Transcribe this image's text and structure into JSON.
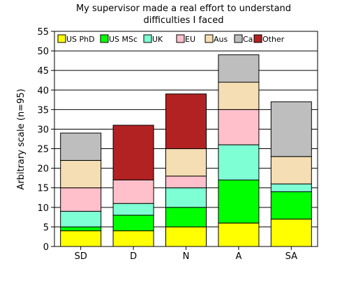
{
  "chart_data": {
    "type": "bar",
    "stacked": true,
    "title": [
      "My supervisor made a real effort to understand",
      "difficulties I faced"
    ],
    "ylabel": "Arbitrary scale (n=95)",
    "xlabel": "",
    "ylim": [
      0,
      55
    ],
    "yticks": [
      0,
      5,
      10,
      15,
      20,
      25,
      30,
      35,
      40,
      45,
      50,
      55
    ],
    "grid": true,
    "legend_position": "top",
    "categories": [
      "SD",
      "D",
      "N",
      "A",
      "SA"
    ],
    "series": [
      {
        "name": "US PhD",
        "color": "#ffff00",
        "values": [
          4,
          4,
          5,
          6,
          7
        ]
      },
      {
        "name": "US MSc",
        "color": "#00ff00",
        "values": [
          1,
          4,
          5,
          11,
          7
        ]
      },
      {
        "name": "UK",
        "color": "#7fffd4",
        "values": [
          4,
          3,
          5,
          9,
          2
        ]
      },
      {
        "name": "EU",
        "color": "#ffc0cb",
        "values": [
          6,
          6,
          3,
          9,
          0
        ]
      },
      {
        "name": "Aus",
        "color": "#f5deb3",
        "values": [
          7,
          0,
          7,
          7,
          7
        ]
      },
      {
        "name": "Ca",
        "color": "#bebebe",
        "values": [
          7,
          0,
          0,
          7,
          14
        ]
      },
      {
        "name": "Other",
        "color": "#b22222",
        "values": [
          0,
          14,
          14,
          0,
          0
        ]
      }
    ]
  }
}
